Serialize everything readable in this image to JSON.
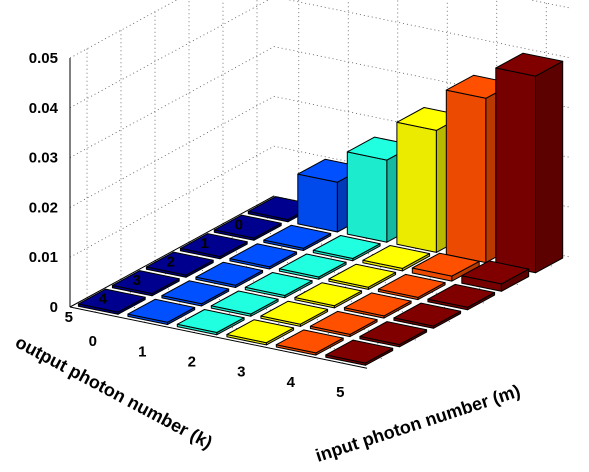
{
  "chart_data": {
    "type": "bar3d",
    "title": "",
    "xlabel": "input photon number (m)",
    "ylabel": "output photon number (k)",
    "zlabel": "",
    "x_ticks": [
      "0",
      "1",
      "2",
      "3",
      "4",
      "5"
    ],
    "y_ticks": [
      "0",
      "1",
      "2",
      "3",
      "4",
      "5"
    ],
    "z_ticks": [
      "0",
      "0.01",
      "0.02",
      "0.03",
      "0.04",
      "0.05"
    ],
    "zlim": [
      0,
      0.05
    ],
    "grid": true,
    "colormap": "jet, colored by input photon number m",
    "colors": [
      "#00008f",
      "#0050ff",
      "#20ffdf",
      "#ffff00",
      "#ff5000",
      "#800000"
    ],
    "values_matrix_rows_k_cols_m": [
      [
        0.0,
        0.01,
        0.0165,
        0.0245,
        0.033,
        0.0395
      ],
      [
        0.0,
        0.0,
        0.0,
        0.0005,
        0.001,
        0.0015
      ],
      [
        0.0,
        0.0,
        0.0,
        0.0,
        0.0,
        0.0005
      ],
      [
        0.0,
        0.0,
        0.0,
        0.0,
        0.0,
        0.0
      ],
      [
        0.0,
        0.0,
        0.0,
        0.0,
        0.0,
        0.0
      ],
      [
        0.0,
        0.0,
        0.0,
        0.0,
        0.0,
        0.0
      ]
    ]
  }
}
